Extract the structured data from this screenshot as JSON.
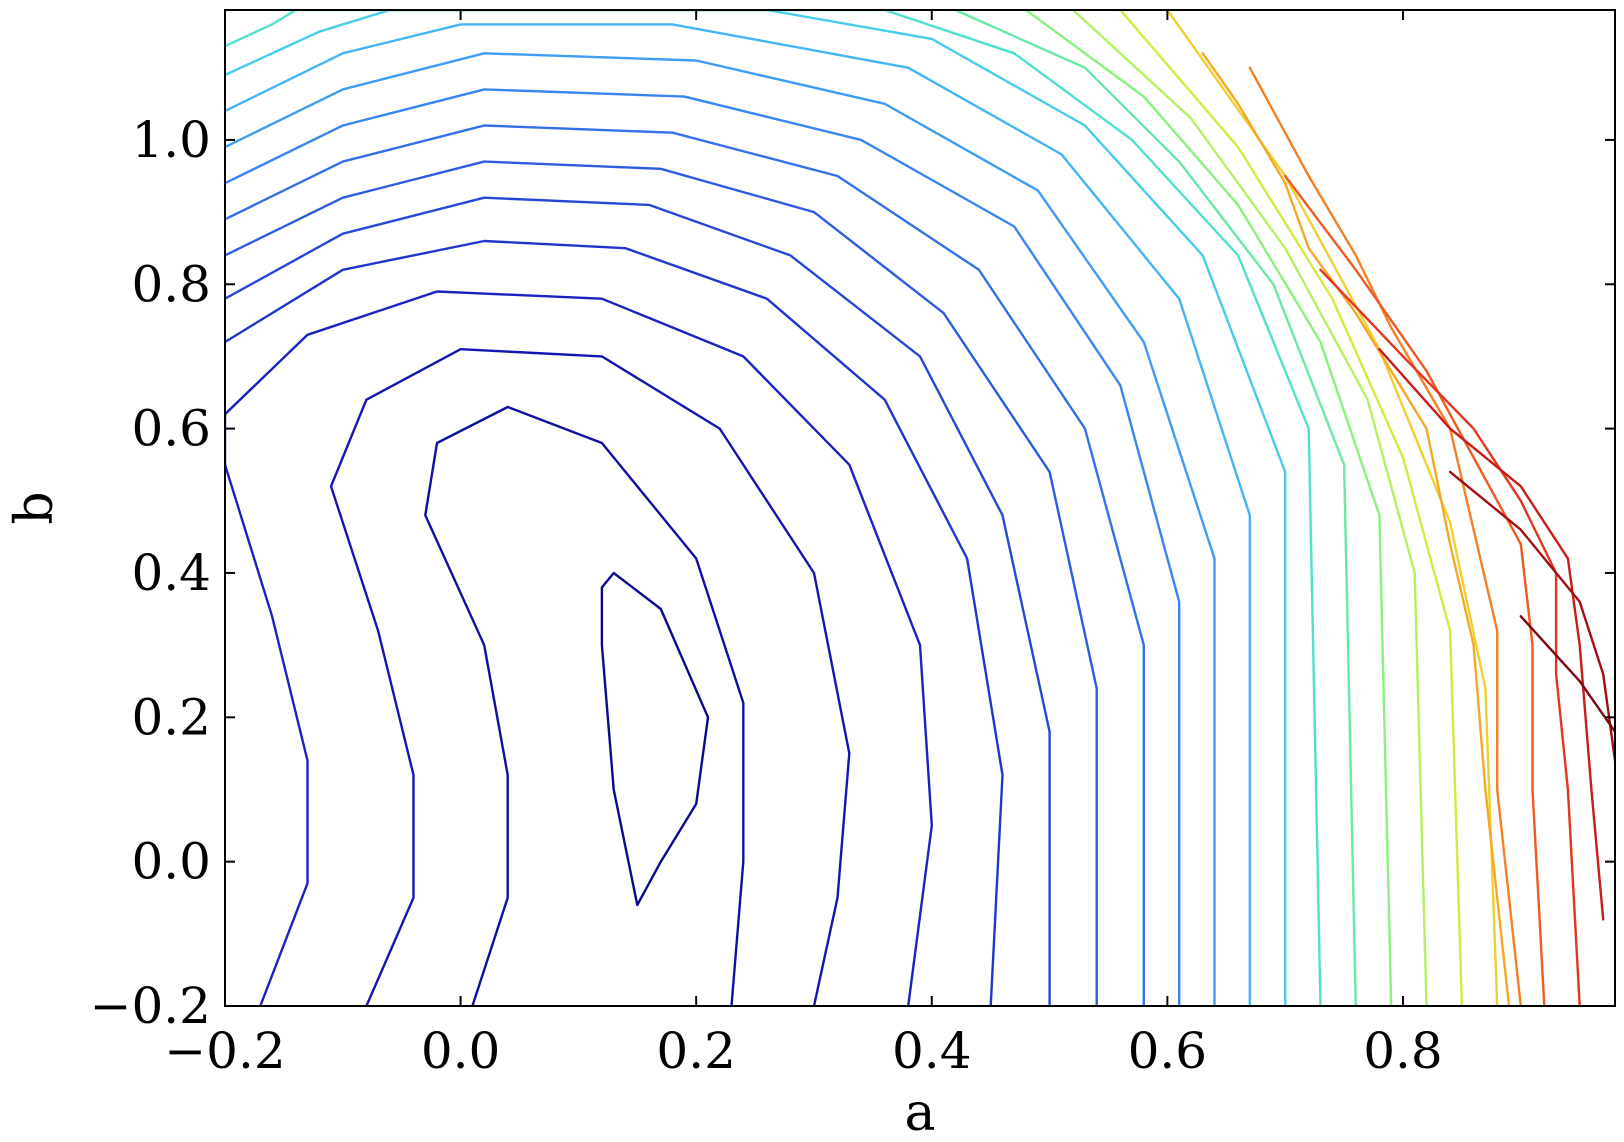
{
  "chart_data": {
    "type": "contour",
    "title": "",
    "xlabel": "a",
    "ylabel": "b",
    "xlim": [
      -0.2,
      0.98
    ],
    "ylim": [
      -0.2,
      1.18
    ],
    "x_ticks": [
      -0.2,
      0.0,
      0.2,
      0.4,
      0.6,
      0.8
    ],
    "x_tick_labels": [
      "−0.2",
      "0.0",
      "0.2",
      "0.4",
      "0.6",
      "0.8"
    ],
    "y_ticks": [
      -0.2,
      0.0,
      0.2,
      0.4,
      0.6,
      0.8,
      1.0
    ],
    "y_tick_labels": [
      "−0.2",
      "0.0",
      "0.2",
      "0.4",
      "0.6",
      "0.8",
      "1.0"
    ],
    "grid": false,
    "legend": "none",
    "colormap": "jet",
    "levels": [
      {
        "color": "#0a0a8c",
        "points": [
          [
            0.15,
            -0.06
          ],
          [
            0.13,
            0.1
          ],
          [
            0.12,
            0.3
          ],
          [
            0.12,
            0.38
          ],
          [
            0.13,
            0.4
          ],
          [
            0.17,
            0.35
          ],
          [
            0.21,
            0.2
          ],
          [
            0.2,
            0.08
          ],
          [
            0.17,
            0.0
          ],
          [
            0.15,
            -0.06
          ]
        ]
      },
      {
        "color": "#1010a0",
        "points": [
          [
            0.01,
            -0.2
          ],
          [
            0.04,
            -0.05
          ],
          [
            0.04,
            0.12
          ],
          [
            0.02,
            0.3
          ],
          [
            -0.03,
            0.48
          ],
          [
            -0.02,
            0.58
          ],
          [
            0.04,
            0.63
          ],
          [
            0.12,
            0.58
          ],
          [
            0.2,
            0.42
          ],
          [
            0.24,
            0.22
          ],
          [
            0.24,
            0.0
          ],
          [
            0.23,
            -0.2
          ]
        ]
      },
      {
        "color": "#1515b0",
        "points": [
          [
            -0.08,
            -0.2
          ],
          [
            -0.04,
            -0.05
          ],
          [
            -0.04,
            0.12
          ],
          [
            -0.07,
            0.32
          ],
          [
            -0.11,
            0.52
          ],
          [
            -0.08,
            0.64
          ],
          [
            0.0,
            0.71
          ],
          [
            0.12,
            0.7
          ],
          [
            0.22,
            0.6
          ],
          [
            0.3,
            0.4
          ],
          [
            0.33,
            0.15
          ],
          [
            0.32,
            -0.05
          ],
          [
            0.3,
            -0.2
          ]
        ]
      },
      {
        "color": "#1a22c0",
        "points": [
          [
            -0.17,
            -0.2
          ],
          [
            -0.13,
            -0.03
          ],
          [
            -0.13,
            0.14
          ],
          [
            -0.16,
            0.34
          ],
          [
            -0.2,
            0.55
          ],
          [
            -0.2,
            0.62
          ],
          [
            -0.13,
            0.73
          ],
          [
            -0.02,
            0.79
          ],
          [
            0.12,
            0.78
          ],
          [
            0.24,
            0.7
          ],
          [
            0.33,
            0.55
          ],
          [
            0.39,
            0.3
          ],
          [
            0.4,
            0.05
          ],
          [
            0.38,
            -0.2
          ]
        ]
      },
      {
        "color": "#2036cc",
        "points": [
          [
            -0.2,
            0.72
          ],
          [
            -0.1,
            0.82
          ],
          [
            0.02,
            0.86
          ],
          [
            0.14,
            0.85
          ],
          [
            0.26,
            0.78
          ],
          [
            0.36,
            0.64
          ],
          [
            0.43,
            0.42
          ],
          [
            0.46,
            0.12
          ],
          [
            0.45,
            -0.2
          ]
        ]
      },
      {
        "color": "#2748d6",
        "points": [
          [
            -0.2,
            0.78
          ],
          [
            -0.1,
            0.87
          ],
          [
            0.02,
            0.92
          ],
          [
            0.16,
            0.91
          ],
          [
            0.28,
            0.84
          ],
          [
            0.39,
            0.7
          ],
          [
            0.46,
            0.48
          ],
          [
            0.5,
            0.18
          ],
          [
            0.5,
            -0.2
          ]
        ]
      },
      {
        "color": "#2e5ce0",
        "points": [
          [
            -0.2,
            0.84
          ],
          [
            -0.1,
            0.92
          ],
          [
            0.02,
            0.97
          ],
          [
            0.17,
            0.96
          ],
          [
            0.3,
            0.9
          ],
          [
            0.41,
            0.76
          ],
          [
            0.5,
            0.54
          ],
          [
            0.54,
            0.24
          ],
          [
            0.54,
            -0.2
          ]
        ]
      },
      {
        "color": "#3470e8",
        "points": [
          [
            -0.2,
            0.89
          ],
          [
            -0.1,
            0.97
          ],
          [
            0.02,
            1.02
          ],
          [
            0.18,
            1.01
          ],
          [
            0.32,
            0.95
          ],
          [
            0.44,
            0.82
          ],
          [
            0.53,
            0.6
          ],
          [
            0.58,
            0.3
          ],
          [
            0.58,
            -0.2
          ]
        ]
      },
      {
        "color": "#3a86ef",
        "points": [
          [
            -0.2,
            0.94
          ],
          [
            -0.1,
            1.02
          ],
          [
            0.02,
            1.07
          ],
          [
            0.19,
            1.06
          ],
          [
            0.34,
            1.0
          ],
          [
            0.47,
            0.88
          ],
          [
            0.56,
            0.66
          ],
          [
            0.61,
            0.36
          ],
          [
            0.61,
            -0.2
          ]
        ]
      },
      {
        "color": "#3f9cf3",
        "points": [
          [
            -0.2,
            0.99
          ],
          [
            -0.1,
            1.07
          ],
          [
            0.02,
            1.12
          ],
          [
            0.2,
            1.11
          ],
          [
            0.36,
            1.05
          ],
          [
            0.49,
            0.93
          ],
          [
            0.58,
            0.72
          ],
          [
            0.64,
            0.42
          ],
          [
            0.64,
            -0.2
          ]
        ]
      },
      {
        "color": "#44b4f5",
        "points": [
          [
            -0.2,
            1.04
          ],
          [
            -0.1,
            1.12
          ],
          [
            0.0,
            1.16
          ],
          [
            0.18,
            1.16
          ],
          [
            0.38,
            1.1
          ],
          [
            0.51,
            0.98
          ],
          [
            0.61,
            0.78
          ],
          [
            0.67,
            0.48
          ],
          [
            0.67,
            -0.2
          ]
        ]
      },
      {
        "color": "#48cce8",
        "points": [
          [
            -0.2,
            1.09
          ],
          [
            -0.12,
            1.15
          ],
          [
            -0.06,
            1.18
          ],
          [
            0.26,
            1.18
          ],
          [
            0.4,
            1.14
          ],
          [
            0.53,
            1.02
          ],
          [
            0.63,
            0.84
          ],
          [
            0.7,
            0.54
          ],
          [
            0.7,
            -0.2
          ]
        ]
      },
      {
        "color": "#50e0cc",
        "points": [
          [
            -0.2,
            1.13
          ],
          [
            -0.16,
            1.16
          ],
          [
            -0.14,
            1.18
          ],
          [
            0.36,
            1.18
          ],
          [
            0.47,
            1.12
          ],
          [
            0.57,
            1.0
          ],
          [
            0.66,
            0.84
          ],
          [
            0.72,
            0.6
          ],
          [
            0.73,
            -0.2
          ]
        ]
      },
      {
        "color": "#6ae8a8",
        "points": [
          [
            0.42,
            1.18
          ],
          [
            0.53,
            1.1
          ],
          [
            0.61,
            0.97
          ],
          [
            0.69,
            0.8
          ],
          [
            0.75,
            0.55
          ],
          [
            0.76,
            -0.2
          ]
        ]
      },
      {
        "color": "#8cf080",
        "points": [
          [
            0.48,
            1.18
          ],
          [
            0.58,
            1.06
          ],
          [
            0.66,
            0.91
          ],
          [
            0.73,
            0.72
          ],
          [
            0.78,
            0.48
          ],
          [
            0.79,
            -0.2
          ]
        ]
      },
      {
        "color": "#b4f060",
        "points": [
          [
            0.52,
            1.18
          ],
          [
            0.62,
            1.03
          ],
          [
            0.7,
            0.85
          ],
          [
            0.77,
            0.64
          ],
          [
            0.81,
            0.4
          ],
          [
            0.82,
            -0.2
          ]
        ]
      },
      {
        "color": "#d8e840",
        "points": [
          [
            0.56,
            1.18
          ],
          [
            0.66,
            0.99
          ],
          [
            0.74,
            0.78
          ],
          [
            0.8,
            0.56
          ],
          [
            0.84,
            0.32
          ],
          [
            0.85,
            -0.2
          ]
        ]
      },
      {
        "color": "#f0d030",
        "points": [
          [
            0.6,
            1.18
          ],
          [
            0.7,
            0.95
          ],
          [
            0.78,
            0.71
          ],
          [
            0.84,
            0.47
          ],
          [
            0.87,
            0.24
          ],
          [
            0.88,
            -0.2
          ]
        ]
      },
      {
        "color": "#f4a828",
        "points": [
          [
            0.63,
            1.12
          ],
          [
            0.66,
            1.05
          ],
          [
            0.7,
            0.94
          ],
          [
            0.72,
            0.85
          ],
          [
            0.76,
            0.76
          ],
          [
            0.82,
            0.6
          ],
          [
            0.84,
            0.44
          ],
          [
            0.86,
            0.3
          ],
          [
            0.87,
            0.1
          ],
          [
            0.88,
            -0.05
          ],
          [
            0.89,
            -0.2
          ]
        ]
      },
      {
        "color": "#f48024",
        "points": [
          [
            0.67,
            1.1
          ],
          [
            0.72,
            0.95
          ],
          [
            0.76,
            0.84
          ],
          [
            0.79,
            0.74
          ],
          [
            0.84,
            0.6
          ],
          [
            0.86,
            0.46
          ],
          [
            0.88,
            0.32
          ],
          [
            0.88,
            0.1
          ],
          [
            0.9,
            -0.2
          ]
        ]
      },
      {
        "color": "#ee5a22",
        "points": [
          [
            0.7,
            0.95
          ],
          [
            0.76,
            0.82
          ],
          [
            0.82,
            0.68
          ],
          [
            0.86,
            0.56
          ],
          [
            0.9,
            0.44
          ],
          [
            0.91,
            0.3
          ],
          [
            0.91,
            0.1
          ],
          [
            0.92,
            -0.2
          ]
        ]
      },
      {
        "color": "#e23620",
        "points": [
          [
            0.73,
            0.82
          ],
          [
            0.8,
            0.7
          ],
          [
            0.86,
            0.6
          ],
          [
            0.9,
            0.5
          ],
          [
            0.93,
            0.4
          ],
          [
            0.93,
            0.26
          ],
          [
            0.94,
            0.1
          ],
          [
            0.95,
            -0.2
          ]
        ]
      },
      {
        "color": "#c81c1c",
        "points": [
          [
            0.78,
            0.71
          ],
          [
            0.84,
            0.6
          ],
          [
            0.9,
            0.52
          ],
          [
            0.94,
            0.42
          ],
          [
            0.95,
            0.3
          ],
          [
            0.96,
            0.1
          ],
          [
            0.97,
            -0.08
          ]
        ]
      },
      {
        "color": "#a00f14",
        "points": [
          [
            0.84,
            0.54
          ],
          [
            0.9,
            0.46
          ],
          [
            0.95,
            0.36
          ],
          [
            0.97,
            0.26
          ],
          [
            0.98,
            0.14
          ]
        ]
      },
      {
        "color": "#7a0a10",
        "points": [
          [
            0.9,
            0.34
          ],
          [
            0.95,
            0.25
          ],
          [
            0.98,
            0.18
          ]
        ]
      }
    ]
  }
}
